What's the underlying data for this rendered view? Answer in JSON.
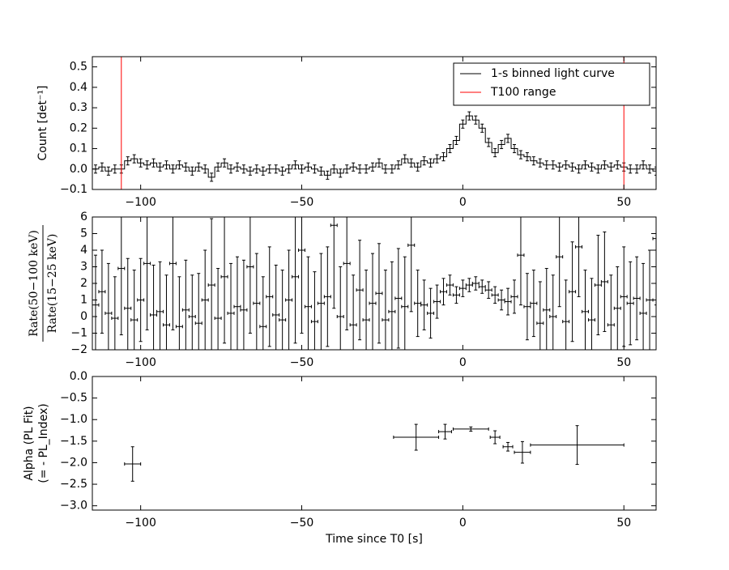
{
  "chart_data": [
    {
      "type": "step",
      "ylabel": "Count [det⁻¹]",
      "legend": "upper right",
      "xlim": [
        -115,
        60
      ],
      "xticks": [
        {
          "value": -100,
          "label": "−100"
        },
        {
          "value": -50,
          "label": "−50"
        },
        0,
        50
      ],
      "ylim": [
        -0.1,
        0.55
      ],
      "yticks": [
        {
          "value": -0.1,
          "label": "−0.1"
        },
        {
          "value": 0.0,
          "label": "0.0"
        },
        0.1,
        0.2,
        0.3,
        0.4,
        0.5
      ],
      "x": [
        -114,
        -112,
        -110,
        -108,
        -106,
        -104,
        -102,
        -100,
        -98,
        -96,
        -94,
        -92,
        -90,
        -88,
        -86,
        -84,
        -82,
        -80,
        -78,
        -76,
        -74,
        -72,
        -70,
        -68,
        -66,
        -64,
        -62,
        -60,
        -58,
        -56,
        -54,
        -52,
        -50,
        -48,
        -46,
        -44,
        -42,
        -40,
        -38,
        -36,
        -34,
        -32,
        -30,
        -28,
        -26,
        -24,
        -22,
        -20,
        -18,
        -16,
        -14,
        -12,
        -10,
        -8,
        -6,
        -4,
        -2,
        0,
        2,
        4,
        6,
        8,
        10,
        12,
        14,
        16,
        18,
        20,
        22,
        24,
        26,
        28,
        30,
        32,
        34,
        36,
        38,
        40,
        42,
        44,
        46,
        48,
        50,
        52,
        54,
        56,
        58,
        60
      ],
      "xerr": 1,
      "series": [
        {
          "name": "1-s binned light curve",
          "color": "#000000",
          "yerr": 0.02,
          "values": [
            0.0,
            0.01,
            -0.01,
            0.0,
            0.0,
            0.04,
            0.05,
            0.03,
            0.02,
            0.03,
            0.01,
            0.02,
            0.0,
            0.02,
            0.01,
            -0.01,
            0.01,
            0.0,
            -0.04,
            0.01,
            0.03,
            0.0,
            0.01,
            0.0,
            -0.01,
            0.0,
            -0.01,
            0.0,
            0.0,
            -0.01,
            0.0,
            0.02,
            0.0,
            0.01,
            0.0,
            -0.01,
            -0.03,
            0.0,
            -0.02,
            0.0,
            0.01,
            0.0,
            0.0,
            0.01,
            0.03,
            0.0,
            0.0,
            0.02,
            0.05,
            0.03,
            0.01,
            0.04,
            0.03,
            0.05,
            0.06,
            0.1,
            0.14,
            0.22,
            0.26,
            0.24,
            0.2,
            0.13,
            0.08,
            0.12,
            0.15,
            0.1,
            0.07,
            0.06,
            0.04,
            0.03,
            0.02,
            0.02,
            0.01,
            0.02,
            0.01,
            0.0,
            0.02,
            0.01,
            0.0,
            0.02,
            0.01,
            0.02,
            0.01,
            0.0,
            0.0,
            0.02,
            0.0,
            -0.01
          ]
        },
        {
          "name": "T100 range",
          "color": "#ff0000",
          "vlines": [
            -106,
            50
          ]
        }
      ]
    },
    {
      "type": "errorbar",
      "ylabel_numerator": "Rate(50−100 keV)",
      "ylabel_denominator": "Rate(15−25 keV)",
      "xlim": [
        -115,
        60
      ],
      "xticks": [
        {
          "value": -100,
          "label": "−100"
        },
        {
          "value": -50,
          "label": "−50"
        },
        0,
        50
      ],
      "ylim": [
        -2,
        6
      ],
      "yticks": [
        {
          "value": -2,
          "label": "−2"
        },
        {
          "value": -1,
          "label": "−1"
        },
        0,
        1,
        2,
        3,
        4,
        5,
        6
      ],
      "x": [
        -114,
        -112,
        -110,
        -108,
        -106,
        -104,
        -102,
        -100,
        -98,
        -96,
        -94,
        -92,
        -90,
        -88,
        -86,
        -84,
        -82,
        -80,
        -78,
        -76,
        -74,
        -72,
        -70,
        -68,
        -66,
        -64,
        -62,
        -60,
        -58,
        -56,
        -54,
        -52,
        -50,
        -48,
        -46,
        -44,
        -42,
        -40,
        -38,
        -36,
        -34,
        -32,
        -30,
        -28,
        -26,
        -24,
        -22,
        -20,
        -18,
        -16,
        -14,
        -12,
        -10,
        -8,
        -6,
        -4,
        -2,
        0,
        2,
        4,
        6,
        8,
        10,
        12,
        14,
        16,
        18,
        20,
        22,
        24,
        26,
        28,
        30,
        32,
        34,
        36,
        38,
        40,
        42,
        44,
        46,
        48,
        50,
        52,
        54,
        56,
        58,
        60
      ],
      "xerr": 1,
      "color": "#000000",
      "values": [
        0.7,
        1.5,
        0.2,
        -0.1,
        2.9,
        0.5,
        -0.2,
        1.0,
        3.2,
        0.1,
        0.3,
        -0.5,
        3.2,
        -0.6,
        0.4,
        0.0,
        -0.4,
        1.0,
        1.9,
        -0.1,
        2.4,
        0.2,
        0.6,
        0.4,
        3.0,
        0.8,
        -0.6,
        1.2,
        0.1,
        -0.2,
        1.0,
        2.4,
        4.0,
        0.6,
        -0.3,
        0.8,
        1.2,
        5.5,
        0.0,
        3.2,
        -0.5,
        1.6,
        -0.2,
        0.8,
        1.4,
        -0.2,
        0.3,
        1.1,
        0.6,
        4.3,
        0.8,
        0.7,
        0.2,
        0.9,
        1.5,
        1.9,
        1.3,
        1.7,
        1.9,
        2.0,
        1.8,
        1.6,
        1.3,
        1.0,
        0.9,
        1.2,
        3.7,
        0.6,
        0.8,
        -0.4,
        0.4,
        0.0,
        3.6,
        -0.3,
        1.5,
        4.2,
        0.3,
        -0.2,
        1.9,
        2.1,
        -0.5,
        0.5,
        1.2,
        0.8,
        1.1,
        0.2,
        1.0,
        4.7
      ],
      "yerr": [
        3,
        2.5,
        3,
        2.5,
        4,
        3,
        3,
        2.5,
        4,
        3,
        3,
        3,
        4,
        3,
        3,
        2.5,
        3,
        3,
        4,
        3,
        4,
        3,
        3,
        3,
        4,
        3,
        3,
        3,
        3,
        3,
        3,
        4,
        5,
        3,
        3,
        3,
        3,
        5,
        3,
        4,
        3,
        3,
        3,
        3,
        3,
        3,
        3,
        3,
        3,
        4,
        2,
        1.5,
        1.5,
        1,
        0.8,
        0.6,
        0.5,
        0.5,
        0.4,
        0.4,
        0.4,
        0.5,
        0.5,
        0.6,
        0.8,
        1,
        3,
        2,
        2,
        2.5,
        2.5,
        2.5,
        3,
        2.5,
        3,
        3,
        2.5,
        2.5,
        3,
        3,
        3,
        2.5,
        3,
        2.5,
        2.5,
        3,
        3,
        4
      ]
    },
    {
      "type": "errorbar",
      "ylabel": [
        "Alpha (PL Fit)",
        "(= - PL_Index)"
      ],
      "xlabel": "Time since T0 [s]",
      "xlim": [
        -115,
        60
      ],
      "xticks": [
        {
          "value": -100,
          "label": "−100"
        },
        {
          "value": -50,
          "label": "−50"
        },
        0,
        50
      ],
      "ylim": [
        -3.1,
        0
      ],
      "yticks": [
        {
          "value": -3.0,
          "label": "−3.0"
        },
        {
          "value": -2.5,
          "label": "−2.5"
        },
        {
          "value": -2.0,
          "label": "−2.0"
        },
        {
          "value": -1.5,
          "label": "−1.5"
        },
        {
          "value": -1.0,
          "label": "−1.0"
        },
        {
          "value": -0.5,
          "label": "−0.5"
        },
        {
          "value": 0.0,
          "label": "0.0"
        }
      ],
      "color": "#000000",
      "x": [
        -102.5,
        -14.5,
        -5.5,
        2.5,
        10,
        14,
        18.5,
        35.5
      ],
      "xerr": [
        2.5,
        7,
        2,
        5.5,
        1.5,
        1.5,
        2.5,
        14.5
      ],
      "values": [
        -2.03,
        -1.41,
        -1.28,
        -1.22,
        -1.41,
        -1.63,
        -1.76,
        -1.59
      ],
      "yerr": [
        0.4,
        0.3,
        0.17,
        0.05,
        0.15,
        0.1,
        0.25,
        0.45
      ]
    }
  ]
}
